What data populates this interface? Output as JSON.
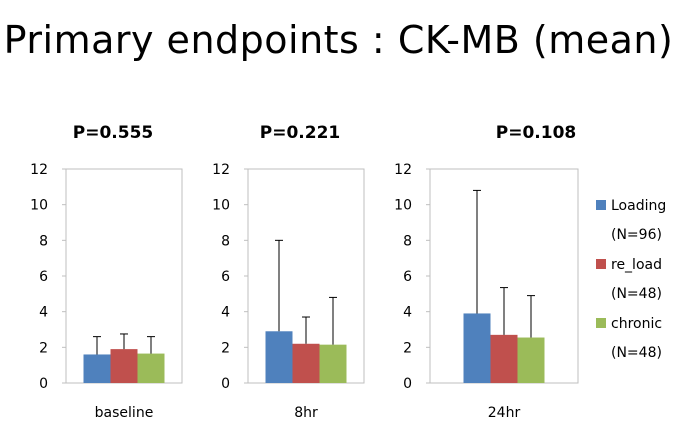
{
  "title": "Primary endpoints : CK-MB (mean)",
  "chart_data": {
    "type": "bar",
    "ylim": [
      0,
      12
    ],
    "yticks": [
      0,
      2,
      4,
      6,
      8,
      10,
      12
    ],
    "grid": false,
    "legend_placement": "right",
    "series": [
      {
        "name": "Loading",
        "sub": "(N=96)",
        "color": "#4F81BD"
      },
      {
        "name": "re_load",
        "sub": "(N=48)",
        "color": "#C0504D"
      },
      {
        "name": "chronic",
        "sub": "(N=48)",
        "color": "#9BBB59"
      }
    ],
    "panels": [
      {
        "category": "baseline",
        "p_label": "P=0.555",
        "values": [
          1.6,
          1.9,
          1.65
        ],
        "errors": [
          1.0,
          0.85,
          0.95
        ]
      },
      {
        "category": "8hr",
        "p_label": "P=0.221",
        "values": [
          2.9,
          2.2,
          2.15
        ],
        "errors": [
          5.1,
          1.5,
          2.65
        ]
      },
      {
        "category": "24hr",
        "p_label": "P=0.108",
        "values": [
          3.9,
          2.7,
          2.55
        ],
        "errors": [
          6.9,
          2.65,
          2.35
        ]
      }
    ]
  }
}
